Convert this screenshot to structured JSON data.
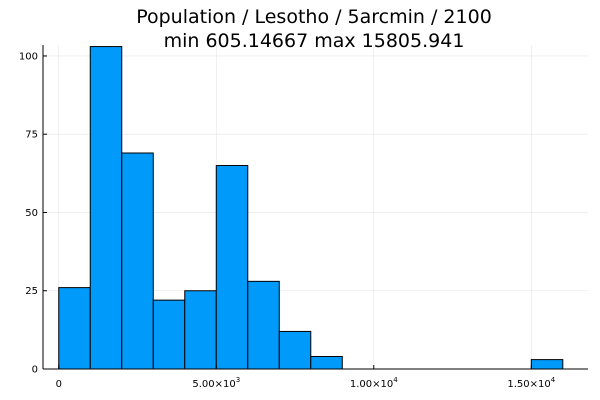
{
  "chart_data": {
    "type": "bar",
    "title_lines": [
      "Population / Lesotho / 5arcmin / 2100",
      "min 605.14667  max 15805.941"
    ],
    "xlabel": "",
    "ylabel": "",
    "xlim": [
      -500,
      16800
    ],
    "ylim": [
      0,
      103.5
    ],
    "grid": true,
    "legend": "none",
    "bar_color": "#009AFA",
    "bin_edges": [
      0,
      1000,
      2000,
      3000,
      4000,
      5000,
      6000,
      7000,
      8000,
      9000,
      15000,
      16000
    ],
    "bins": [
      {
        "x0": 0,
        "x1": 1000,
        "count": 26
      },
      {
        "x0": 1000,
        "x1": 2000,
        "count": 103
      },
      {
        "x0": 2000,
        "x1": 3000,
        "count": 69
      },
      {
        "x0": 3000,
        "x1": 4000,
        "count": 22
      },
      {
        "x0": 4000,
        "x1": 5000,
        "count": 25
      },
      {
        "x0": 5000,
        "x1": 6000,
        "count": 65
      },
      {
        "x0": 6000,
        "x1": 7000,
        "count": 28
      },
      {
        "x0": 7000,
        "x1": 8000,
        "count": 12
      },
      {
        "x0": 8000,
        "x1": 9000,
        "count": 4
      },
      {
        "x0": 15000,
        "x1": 16000,
        "count": 3
      }
    ],
    "y_ticks": [
      0,
      25,
      50,
      75,
      100
    ],
    "y_tick_labels": [
      "0",
      "25",
      "50",
      "75",
      "100"
    ],
    "x_ticks": [
      0,
      5000,
      10000,
      15000
    ],
    "x_tick_labels": [
      {
        "base": "0",
        "exp": ""
      },
      {
        "base": "5.00×10",
        "exp": "3"
      },
      {
        "base": "1.00×10",
        "exp": "4"
      },
      {
        "base": "1.50×10",
        "exp": "4"
      }
    ]
  }
}
